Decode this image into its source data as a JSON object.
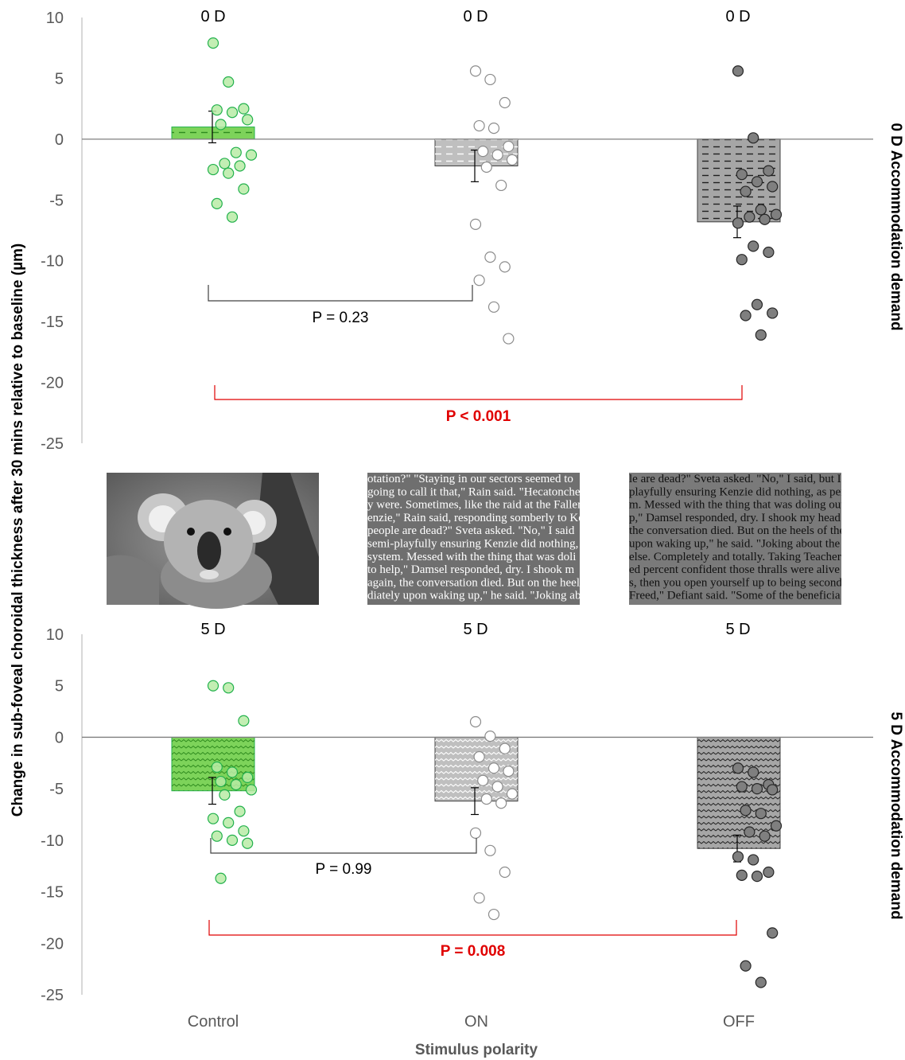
{
  "y_axis_title": "Change in sub-foveal choroidal thickness after 30 mins relative to baseline (µm)",
  "x_axis_title": "Stimulus polarity",
  "categories": [
    "Control",
    "ON",
    "OFF"
  ],
  "colors": {
    "control_fill": "#7dd35a",
    "control_edge": "#22b14c",
    "on_fill": "#bfbfbf",
    "off_fill": "#a6a6a6",
    "off_point": "#7f7f7f",
    "pvalue_red": "#e00000",
    "pvalue_gray": "#404040"
  },
  "stimulus_images": [
    {
      "name": "koala-photo"
    },
    {
      "name": "on-text",
      "lines": [
        "otation?\" \"Staying in our sectors seemed to",
        "going to call it that,\" Rain said. \"Hecatonche",
        "y were. Sometimes, like the raid at the Fallen",
        "enzie,\" Rain said, responding somberly to Ke",
        "people are dead?\" Sveta asked. \"No,\" I said",
        "semi-playfully ensuring Kenzie did nothing,",
        "system. Messed with the thing that was doli",
        "to help,\" Damsel responded, dry. I shook m",
        "again, the conversation died. But on the heel",
        "diately upon waking up,\" he said. \"Joking ab"
      ]
    },
    {
      "name": "off-text",
      "lines": [
        "le are dead?\" Sveta asked. \"No,\" I said, but I",
        "playfully ensuring Kenzie did nothing, as per",
        "m. Messed with the thing that was doling out",
        "p,\" Damsel responded, dry. I shook my head",
        "the conversation died. But on the heels of the",
        "upon waking up,\" he said. \"Joking about the",
        "else. Completely and totally. Taking Teacher's",
        "ed percent confident those thralls were alive",
        "s, then you open yourself up to being second",
        "Freed,\" Defiant said. \"Some of the beneficia"
      ]
    }
  ],
  "chart_data": [
    {
      "type": "bar",
      "panel": "0 D Accommodation demand",
      "side_label": "0 D Accommodation demand",
      "categories": [
        "Control",
        "ON",
        "OFF"
      ],
      "bar_top_labels": [
        "0 D",
        "0 D",
        "0 D"
      ],
      "values": [
        1.0,
        -2.2,
        -6.8
      ],
      "error": [
        1.3,
        1.3,
        1.3
      ],
      "ylim": [
        -25,
        10
      ],
      "yticks": [
        10,
        5,
        0,
        -5,
        -10,
        -15,
        -20,
        -25
      ],
      "points": [
        [
          7.9,
          4.7,
          2.5,
          2.4,
          2.2,
          1.6,
          1.2,
          -1.1,
          -1.3,
          -2.0,
          -2.2,
          -2.5,
          -2.8,
          -4.1,
          -5.3,
          -6.4
        ],
        [
          5.6,
          4.9,
          3.0,
          1.1,
          0.9,
          -0.6,
          -1.0,
          -1.3,
          -1.7,
          -2.3,
          -3.8,
          -7.0,
          -9.7,
          -10.5,
          -11.6,
          -13.8,
          -16.4
        ],
        [
          5.6,
          0.1,
          -2.6,
          -2.9,
          -3.5,
          -3.9,
          -4.3,
          -5.8,
          -6.2,
          -6.4,
          -6.6,
          -6.9,
          -8.8,
          -9.3,
          -9.9,
          -13.6,
          -14.3,
          -14.5,
          -16.1
        ]
      ],
      "comparisons": [
        {
          "from": "Control",
          "to": "ON",
          "label": "P = 0.23",
          "significant": false
        },
        {
          "from": "Control",
          "to": "OFF",
          "label": "P < 0.001",
          "significant": true
        }
      ]
    },
    {
      "type": "bar",
      "panel": "5 D Accommodation demand",
      "side_label": "5 D Accommodation demand",
      "categories": [
        "Control",
        "ON",
        "OFF"
      ],
      "bar_top_labels": [
        "5 D",
        "5 D",
        "5 D"
      ],
      "values": [
        -5.2,
        -6.2,
        -10.8
      ],
      "error": [
        1.3,
        1.3,
        1.3
      ],
      "ylim": [
        -25,
        10
      ],
      "yticks": [
        10,
        5,
        0,
        -5,
        -10,
        -15,
        -20,
        -25
      ],
      "points": [
        [
          5.0,
          4.8,
          1.6,
          -2.9,
          -3.4,
          -3.9,
          -4.3,
          -4.6,
          -5.1,
          -5.6,
          -7.2,
          -7.9,
          -8.3,
          -9.1,
          -9.6,
          -10.0,
          -10.3,
          -13.7
        ],
        [
          1.5,
          0.1,
          -1.1,
          -1.9,
          -3.0,
          -3.3,
          -4.2,
          -4.8,
          -5.5,
          -6.0,
          -6.4,
          -9.3,
          -11.0,
          -13.1,
          -15.6,
          -17.2
        ],
        [
          -3.0,
          -3.4,
          -4.6,
          -4.8,
          -5.0,
          -5.1,
          -7.1,
          -7.4,
          -8.6,
          -9.2,
          -9.6,
          -11.6,
          -11.9,
          -13.1,
          -13.4,
          -13.5,
          -19.0,
          -22.2,
          -23.8
        ]
      ],
      "comparisons": [
        {
          "from": "Control",
          "to": "ON",
          "label": "P = 0.99",
          "significant": false
        },
        {
          "from": "Control",
          "to": "OFF",
          "label": "P = 0.008",
          "significant": true
        }
      ]
    }
  ]
}
